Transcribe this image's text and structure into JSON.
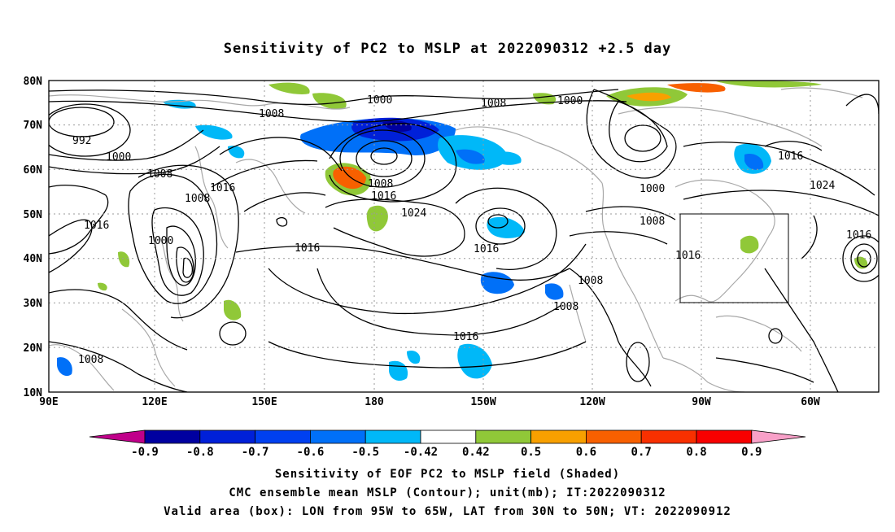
{
  "title": "Sensitivity of PC2 to MSLP at 2022090312 +2.5 day",
  "map": {
    "lat_labels": [
      "80N",
      "70N",
      "60N",
      "50N",
      "40N",
      "30N",
      "20N",
      "10N"
    ],
    "lon_labels": [
      "90E",
      "120E",
      "150E",
      "180",
      "150W",
      "120W",
      "90W",
      "60W"
    ],
    "valid_box": {
      "lon_min": -95,
      "lon_max": -65,
      "lat_min": 30,
      "lat_max": 50
    },
    "contour_labels": [
      "1000",
      "1008",
      "1000",
      "992",
      "1000",
      "1008",
      "1008",
      "1016",
      "1016",
      "1000",
      "1016",
      "1008",
      "1016",
      "1024",
      "1016",
      "1016",
      "1000",
      "1008",
      "1008",
      "1016",
      "1024",
      "1016",
      "1016",
      "1008",
      "1008",
      "1008"
    ]
  },
  "colorbar": {
    "labels": [
      "-0.9",
      "-0.8",
      "-0.7",
      "-0.6",
      "-0.5",
      "-0.42",
      "0.42",
      "0.5",
      "0.6",
      "0.7",
      "0.8",
      "0.9"
    ],
    "colors": [
      "#c0008a",
      "#0000a0",
      "#0020d8",
      "#0040f0",
      "#0070f8",
      "#00b8f8",
      "#ffffff",
      "#90c838",
      "#f8a000",
      "#f86000",
      "#f83000",
      "#f80000",
      "#f8a0c8"
    ]
  },
  "captions": {
    "line1": "Sensitivity of EOF PC2 to MSLP field (Shaded)",
    "line2": "CMC ensemble mean MSLP (Contour); unit(mb); IT:2022090312",
    "line3": "Valid area (box): LON from 95W to 65W, LAT from 30N to 50N; VT: 2022090912"
  }
}
